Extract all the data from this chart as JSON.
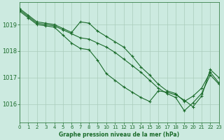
{
  "title": "Graphe pression niveau de la mer (hPa)",
  "bg_color": "#cceae0",
  "grid_color": "#aaccbb",
  "line_color": "#1a6b2a",
  "xlim": [
    0,
    23
  ],
  "ylim": [
    1015.3,
    1019.85
  ],
  "yticks": [
    1016,
    1017,
    1018,
    1019
  ],
  "xticks": [
    0,
    1,
    2,
    3,
    4,
    5,
    6,
    7,
    8,
    9,
    10,
    11,
    12,
    13,
    14,
    15,
    16,
    17,
    18,
    19,
    20,
    21,
    22,
    23
  ],
  "series": [
    [
      1019.6,
      1019.35,
      1019.1,
      1019.05,
      1019.0,
      1018.85,
      1018.7,
      1019.1,
      1019.05,
      1018.75,
      1018.55,
      1018.35,
      1018.15,
      1017.8,
      1017.4,
      1017.1,
      1016.75,
      1016.5,
      1016.4,
      1016.1,
      1016.3,
      1016.6,
      1017.2,
      1016.8
    ],
    [
      1019.55,
      1019.3,
      1019.05,
      1019.0,
      1018.95,
      1018.8,
      1018.65,
      1018.5,
      1018.45,
      1018.3,
      1018.15,
      1017.95,
      1017.7,
      1017.45,
      1017.2,
      1016.9,
      1016.6,
      1016.4,
      1016.25,
      1015.75,
      1016.05,
      1016.4,
      1017.1,
      1016.75
    ],
    [
      1019.5,
      1019.25,
      1019.0,
      1018.95,
      1018.9,
      1018.6,
      1018.3,
      1018.1,
      1018.05,
      1017.65,
      1017.15,
      1016.9,
      1016.65,
      1016.45,
      1016.25,
      1016.1,
      1016.5,
      1016.45,
      1016.35,
      1016.15,
      1015.9,
      1016.3,
      1017.3,
      1017.0
    ]
  ]
}
